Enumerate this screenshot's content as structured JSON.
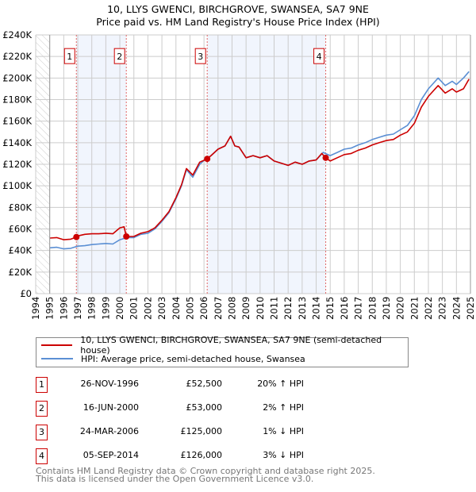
{
  "title": "10, LLYS GWENCI, BIRCHGROVE, SWANSEA, SA7 9NE",
  "subtitle": "Price paid vs. HM Land Registry's House Price Index (HPI)",
  "chart_data": {
    "type": "line",
    "title": "10, LLYS GWENCI, BIRCHGROVE, SWANSEA, SA7 9NE",
    "subtitle": "Price paid vs. HM Land Registry's House Price Index (HPI)",
    "xlim": [
      1994,
      2025
    ],
    "ylim": [
      0,
      240000
    ],
    "x_ticks": [
      "1994",
      "1995",
      "1996",
      "1997",
      "1998",
      "1999",
      "2000",
      "2001",
      "2002",
      "2003",
      "2004",
      "2005",
      "2006",
      "2007",
      "2008",
      "2009",
      "2010",
      "2011",
      "2012",
      "2013",
      "2014",
      "2015",
      "2016",
      "2017",
      "2018",
      "2019",
      "2020",
      "2021",
      "2022",
      "2023",
      "2024",
      "2025"
    ],
    "y_ticks": [
      {
        "v": 0,
        "label": "£0"
      },
      {
        "v": 20000,
        "label": "£20K"
      },
      {
        "v": 40000,
        "label": "£40K"
      },
      {
        "v": 60000,
        "label": "£60K"
      },
      {
        "v": 80000,
        "label": "£80K"
      },
      {
        "v": 100000,
        "label": "£100K"
      },
      {
        "v": 120000,
        "label": "£120K"
      },
      {
        "v": 140000,
        "label": "£140K"
      },
      {
        "v": 160000,
        "label": "£160K"
      },
      {
        "v": 180000,
        "label": "£180K"
      },
      {
        "v": 200000,
        "label": "£200K"
      },
      {
        "v": 220000,
        "label": "£220K"
      },
      {
        "v": 240000,
        "label": "£240K"
      }
    ],
    "grid": true,
    "hatched_before": 1995,
    "series": [
      {
        "name": "10, LLYS GWENCI, BIRCHGROVE, SWANSEA, SA7 9NE (semi-detached house)",
        "color": "#cc0000",
        "points": [
          [
            1995,
            51500
          ],
          [
            1995.5,
            52000
          ],
          [
            1996,
            50000
          ],
          [
            1996.5,
            50500
          ],
          [
            1996.9,
            52500
          ],
          [
            1997,
            53500
          ],
          [
            1997.5,
            55000
          ],
          [
            1998,
            55500
          ],
          [
            1998.5,
            55500
          ],
          [
            1999,
            56000
          ],
          [
            1999.5,
            55500
          ],
          [
            2000,
            61000
          ],
          [
            2000.3,
            62000
          ],
          [
            2000.46,
            53000
          ],
          [
            2001,
            53000
          ],
          [
            2001.5,
            56000
          ],
          [
            2002,
            57500
          ],
          [
            2002.5,
            61000
          ],
          [
            2003,
            68000
          ],
          [
            2003.5,
            76000
          ],
          [
            2004,
            89000
          ],
          [
            2004.4,
            101000
          ],
          [
            2004.75,
            116000
          ],
          [
            2005.2,
            110000
          ],
          [
            2005.7,
            122000
          ],
          [
            2006.23,
            125000
          ],
          [
            2006.5,
            128000
          ],
          [
            2007,
            134000
          ],
          [
            2007.5,
            137000
          ],
          [
            2007.9,
            146000
          ],
          [
            2008.2,
            137000
          ],
          [
            2008.5,
            136000
          ],
          [
            2009,
            126000
          ],
          [
            2009.5,
            128000
          ],
          [
            2010,
            126000
          ],
          [
            2010.5,
            128000
          ],
          [
            2011,
            123000
          ],
          [
            2011.5,
            121000
          ],
          [
            2012,
            119000
          ],
          [
            2012.5,
            122000
          ],
          [
            2013,
            120000
          ],
          [
            2013.5,
            123000
          ],
          [
            2014,
            124000
          ],
          [
            2014.4,
            130000
          ],
          [
            2014.68,
            126000
          ],
          [
            2015,
            123000
          ],
          [
            2015.5,
            126000
          ],
          [
            2016,
            129000
          ],
          [
            2016.5,
            130000
          ],
          [
            2017,
            133000
          ],
          [
            2017.5,
            135000
          ],
          [
            2018,
            138000
          ],
          [
            2018.5,
            140000
          ],
          [
            2019,
            142000
          ],
          [
            2019.5,
            143000
          ],
          [
            2020,
            147000
          ],
          [
            2020.5,
            150000
          ],
          [
            2021,
            158000
          ],
          [
            2021.5,
            173000
          ],
          [
            2022,
            183000
          ],
          [
            2022.7,
            193000
          ],
          [
            2023.2,
            186000
          ],
          [
            2023.7,
            190000
          ],
          [
            2024,
            187000
          ],
          [
            2024.5,
            190000
          ],
          [
            2024.9,
            199000
          ]
        ]
      },
      {
        "name": "HPI: Average price, semi-detached house, Swansea",
        "color": "#5b8fd4",
        "points": [
          [
            1995,
            42500
          ],
          [
            1995.5,
            43000
          ],
          [
            1996,
            41500
          ],
          [
            1996.5,
            42000
          ],
          [
            1997,
            44000
          ],
          [
            1997.5,
            44500
          ],
          [
            1998,
            45500
          ],
          [
            1998.5,
            46000
          ],
          [
            1999,
            46500
          ],
          [
            1999.5,
            46000
          ],
          [
            2000,
            50000
          ],
          [
            2000.5,
            52000
          ],
          [
            2001,
            52000
          ],
          [
            2001.5,
            55000
          ],
          [
            2002,
            56000
          ],
          [
            2002.5,
            60000
          ],
          [
            2003,
            67000
          ],
          [
            2003.5,
            75000
          ],
          [
            2004,
            88000
          ],
          [
            2004.4,
            100000
          ],
          [
            2004.75,
            115000
          ],
          [
            2005.2,
            108000
          ],
          [
            2005.7,
            120000
          ],
          [
            2006,
            123500
          ],
          [
            2006.5,
            128000
          ],
          [
            2007,
            134000
          ],
          [
            2007.5,
            137000
          ],
          [
            2007.9,
            146000
          ],
          [
            2008.2,
            137000
          ],
          [
            2008.5,
            136000
          ],
          [
            2009,
            126000
          ],
          [
            2009.5,
            128000
          ],
          [
            2010,
            126000
          ],
          [
            2010.5,
            128000
          ],
          [
            2011,
            123000
          ],
          [
            2011.5,
            121000
          ],
          [
            2012,
            119000
          ],
          [
            2012.5,
            122000
          ],
          [
            2013,
            120000
          ],
          [
            2013.5,
            123000
          ],
          [
            2014,
            124000
          ],
          [
            2014.5,
            131000
          ],
          [
            2015,
            128000
          ],
          [
            2015.5,
            131000
          ],
          [
            2016,
            134000
          ],
          [
            2016.5,
            135000
          ],
          [
            2017,
            138000
          ],
          [
            2017.5,
            140000
          ],
          [
            2018,
            143000
          ],
          [
            2018.5,
            145000
          ],
          [
            2019,
            147000
          ],
          [
            2019.5,
            148000
          ],
          [
            2020,
            152000
          ],
          [
            2020.5,
            156000
          ],
          [
            2021,
            165000
          ],
          [
            2021.5,
            180000
          ],
          [
            2022,
            190000
          ],
          [
            2022.7,
            200000
          ],
          [
            2023.2,
            193000
          ],
          [
            2023.7,
            197000
          ],
          [
            2024,
            194000
          ],
          [
            2024.5,
            200000
          ],
          [
            2024.9,
            206000
          ]
        ]
      }
    ],
    "sales": [
      {
        "num": "1",
        "x": 1996.9,
        "price": 52500
      },
      {
        "num": "2",
        "x": 2000.46,
        "price": 53000
      },
      {
        "num": "3",
        "x": 2006.23,
        "price": 125000
      },
      {
        "num": "4",
        "x": 2014.68,
        "price": 126000
      }
    ],
    "shaded_ranges": [
      [
        1996.9,
        2000.46
      ],
      [
        2006.23,
        2014.68
      ]
    ],
    "marker_label_value": 220000
  },
  "legend": {
    "items": [
      {
        "label": "10, LLYS GWENCI, BIRCHGROVE, SWANSEA, SA7 9NE (semi-detached house)",
        "color": "#cc0000"
      },
      {
        "label": "HPI: Average price, semi-detached house, Swansea",
        "color": "#5b8fd4"
      }
    ]
  },
  "transactions": [
    {
      "num": "1",
      "date": "26-NOV-1996",
      "price": "£52,500",
      "hpi": "20% ↑ HPI"
    },
    {
      "num": "2",
      "date": "16-JUN-2000",
      "price": "£53,000",
      "hpi": "2% ↑ HPI"
    },
    {
      "num": "3",
      "date": "24-MAR-2006",
      "price": "£125,000",
      "hpi": "1% ↓ HPI"
    },
    {
      "num": "4",
      "date": "05-SEP-2014",
      "price": "£126,000",
      "hpi": "3% ↓ HPI"
    }
  ],
  "footer": {
    "line1": "Contains HM Land Registry data © Crown copyright and database right 2025.",
    "line2": "This data is licensed under the Open Government Licence v3.0."
  }
}
